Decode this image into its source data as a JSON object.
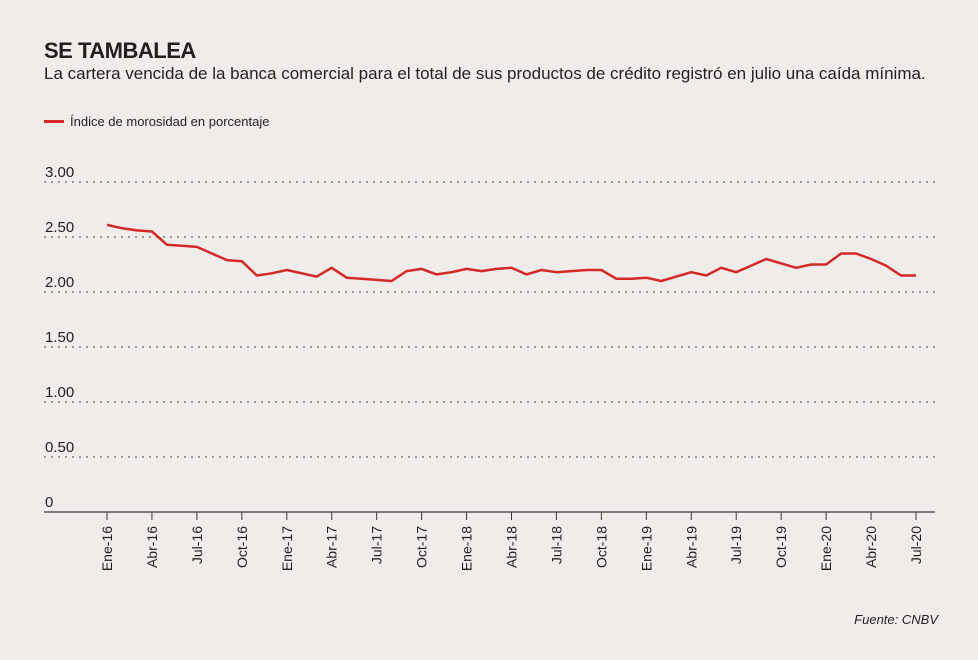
{
  "header": {
    "title": "SE TAMBALEA",
    "subtitle": "La cartera vencida de la banca comercial para el total de sus productos de crédito registró en julio una caída mínima."
  },
  "legend": {
    "label": "Índice de morosidad en porcentaje",
    "color": "#d32a27"
  },
  "source": "Fuente: CNBV",
  "chart_data": {
    "type": "line",
    "title": "SE TAMBALEA",
    "xlabel": "",
    "ylabel": "",
    "ylim": [
      0,
      3
    ],
    "yticks": [
      {
        "value": 3.0,
        "label": "3.00"
      },
      {
        "value": 2.5,
        "label": "2.50"
      },
      {
        "value": 2.0,
        "label": "2.00"
      },
      {
        "value": 1.5,
        "label": "1.50"
      },
      {
        "value": 1.0,
        "label": "1.00"
      },
      {
        "value": 0.5,
        "label": "0.50"
      },
      {
        "value": 0,
        "label": "0"
      }
    ],
    "x_tick_labels": [
      "Ene-16",
      "Abr-16",
      "Jul-16",
      "Oct-16",
      "Ene-17",
      "Abr-17",
      "Jul-17",
      "Oct-17",
      "Ene-18",
      "Abr-18",
      "Jul-18",
      "Oct-18",
      "Ene-19",
      "Abr-19",
      "Jul-19",
      "Oct-19",
      "Ene-20",
      "Abr-20",
      "Jul-20"
    ],
    "grid": true,
    "series": [
      {
        "name": "Índice de morosidad en porcentaje",
        "color": "#d32a27",
        "x": [
          "Ene-16",
          "Feb-16",
          "Mar-16",
          "Abr-16",
          "May-16",
          "Jun-16",
          "Jul-16",
          "Ago-16",
          "Sep-16",
          "Oct-16",
          "Nov-16",
          "Dic-16",
          "Ene-17",
          "Feb-17",
          "Mar-17",
          "Abr-17",
          "May-17",
          "Jun-17",
          "Jul-17",
          "Ago-17",
          "Sep-17",
          "Oct-17",
          "Nov-17",
          "Dic-17",
          "Ene-18",
          "Feb-18",
          "Mar-18",
          "Abr-18",
          "May-18",
          "Jun-18",
          "Jul-18",
          "Ago-18",
          "Sep-18",
          "Oct-18",
          "Nov-18",
          "Dic-18",
          "Ene-19",
          "Feb-19",
          "Mar-19",
          "Abr-19",
          "May-19",
          "Jun-19",
          "Jul-19",
          "Ago-19",
          "Sep-19",
          "Oct-19",
          "Nov-19",
          "Dic-19",
          "Ene-20",
          "Feb-20",
          "Mar-20",
          "Abr-20",
          "May-20",
          "Jun-20",
          "Jul-20"
        ],
        "values": [
          2.61,
          2.58,
          2.56,
          2.55,
          2.43,
          2.42,
          2.41,
          2.35,
          2.29,
          2.28,
          2.15,
          2.17,
          2.2,
          2.17,
          2.14,
          2.22,
          2.13,
          2.12,
          2.11,
          2.1,
          2.19,
          2.21,
          2.16,
          2.18,
          2.21,
          2.19,
          2.21,
          2.22,
          2.16,
          2.2,
          2.18,
          2.19,
          2.2,
          2.2,
          2.12,
          2.12,
          2.13,
          2.1,
          2.14,
          2.18,
          2.15,
          2.22,
          2.18,
          2.24,
          2.3,
          2.26,
          2.22,
          2.25,
          2.25,
          2.35,
          2.35,
          2.3,
          2.24,
          2.15,
          2.15
        ]
      }
    ]
  }
}
